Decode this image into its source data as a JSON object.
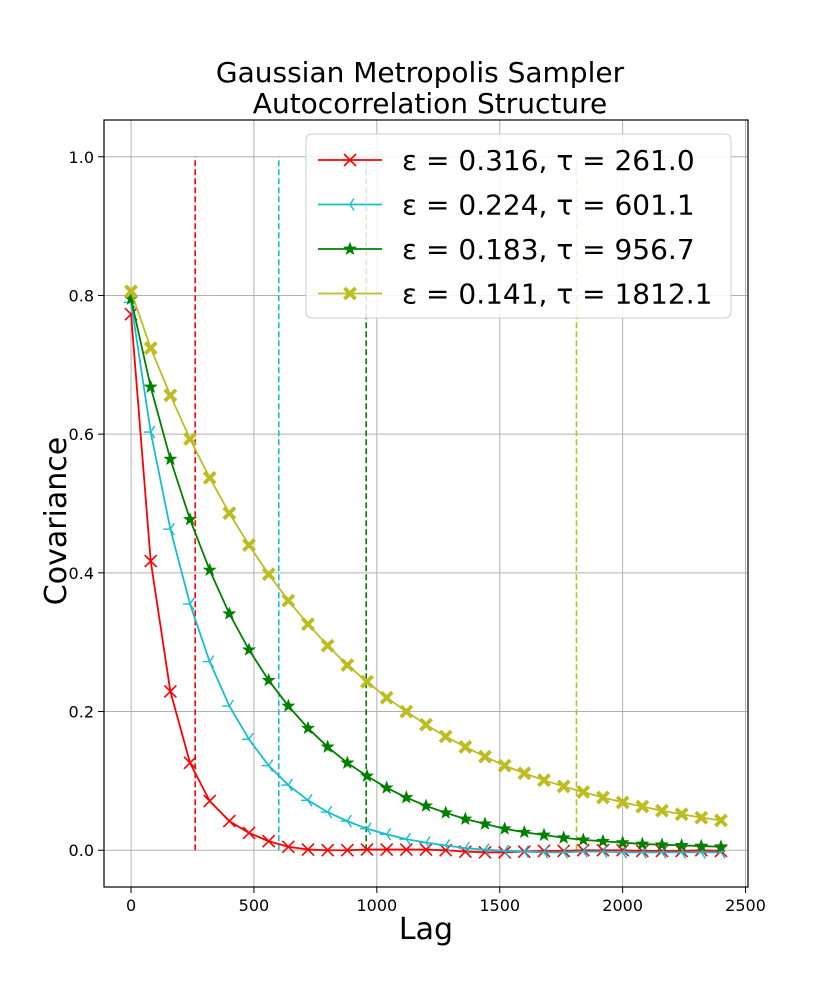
{
  "chart_data": {
    "type": "line",
    "title": "Gaussian Metropolis Sampler\nAutocorrelation Structure",
    "xlabel": "Lag",
    "ylabel": "Covariance",
    "xlim": [
      -110,
      2510
    ],
    "ylim": [
      -0.053,
      1.053
    ],
    "xticks": [
      0,
      500,
      1000,
      1500,
      2000,
      2500
    ],
    "yticks": [
      0.0,
      0.2,
      0.4,
      0.6,
      0.8,
      1.0
    ],
    "grid": true,
    "legend_position": "top-right",
    "series": [
      {
        "name": "ε = 0.316, τ = 261.0",
        "color": "#ff0000",
        "marker": "x",
        "tau": 261.0,
        "x": [
          0,
          80,
          160,
          240,
          320,
          400,
          480,
          560,
          640,
          720,
          800,
          880,
          960,
          1040,
          1120,
          1200,
          1280,
          1360,
          1440,
          1520,
          1600,
          1680,
          1760,
          1840,
          1920,
          2000,
          2080,
          2160,
          2240,
          2320,
          2400
        ],
        "y": [
          0.773,
          0.417,
          0.229,
          0.126,
          0.071,
          0.042,
          0.025,
          0.013,
          0.005,
          0.001,
          0.0,
          0.0,
          0.001,
          0.001,
          0.001,
          0.001,
          0.0,
          -0.002,
          -0.003,
          -0.003,
          -0.002,
          -0.001,
          -0.001,
          0.0,
          0.0,
          0.0,
          -0.001,
          -0.001,
          -0.001,
          0.0,
          -0.001
        ]
      },
      {
        "name": "ε = 0.224, τ = 601.1",
        "color": "#17becf",
        "marker": "tri_left",
        "tau": 601.1,
        "x": [
          0,
          80,
          160,
          240,
          320,
          400,
          480,
          560,
          640,
          720,
          800,
          880,
          960,
          1040,
          1120,
          1200,
          1280,
          1360,
          1440,
          1520,
          1600,
          1680,
          1760,
          1840,
          1920,
          2000,
          2080,
          2160,
          2240,
          2320,
          2400
        ],
        "y": [
          0.79,
          0.603,
          0.463,
          0.355,
          0.272,
          0.208,
          0.16,
          0.122,
          0.094,
          0.072,
          0.055,
          0.042,
          0.031,
          0.023,
          0.016,
          0.011,
          0.007,
          0.003,
          0.001,
          -0.001,
          -0.002,
          -0.003,
          -0.003,
          -0.002,
          -0.002,
          -0.003,
          -0.003,
          -0.003,
          -0.003,
          -0.003,
          -0.003
        ]
      },
      {
        "name": "ε = 0.183, τ = 956.7",
        "color": "#008000",
        "marker": "star",
        "tau": 956.7,
        "x": [
          0,
          80,
          160,
          240,
          320,
          400,
          480,
          560,
          640,
          720,
          800,
          880,
          960,
          1040,
          1120,
          1200,
          1280,
          1360,
          1440,
          1520,
          1600,
          1680,
          1760,
          1840,
          1920,
          2000,
          2080,
          2160,
          2240,
          2320,
          2400
        ],
        "y": [
          0.795,
          0.668,
          0.564,
          0.477,
          0.404,
          0.341,
          0.289,
          0.245,
          0.208,
          0.176,
          0.149,
          0.126,
          0.107,
          0.09,
          0.076,
          0.064,
          0.054,
          0.045,
          0.038,
          0.031,
          0.026,
          0.022,
          0.018,
          0.015,
          0.013,
          0.011,
          0.009,
          0.008,
          0.007,
          0.006,
          0.005
        ]
      },
      {
        "name": "ε = 0.141, τ = 1812.1",
        "color": "#bcbd22",
        "marker": "X",
        "tau": 1812.1,
        "x": [
          0,
          80,
          160,
          240,
          320,
          400,
          480,
          560,
          640,
          720,
          800,
          880,
          960,
          1040,
          1120,
          1200,
          1280,
          1360,
          1440,
          1520,
          1600,
          1680,
          1760,
          1840,
          1920,
          2000,
          2080,
          2160,
          2240,
          2320,
          2400
        ],
        "y": [
          0.806,
          0.724,
          0.656,
          0.593,
          0.537,
          0.486,
          0.44,
          0.398,
          0.36,
          0.326,
          0.295,
          0.267,
          0.243,
          0.22,
          0.2,
          0.181,
          0.164,
          0.149,
          0.135,
          0.122,
          0.111,
          0.101,
          0.092,
          0.084,
          0.076,
          0.069,
          0.063,
          0.057,
          0.052,
          0.047,
          0.043
        ]
      }
    ]
  }
}
